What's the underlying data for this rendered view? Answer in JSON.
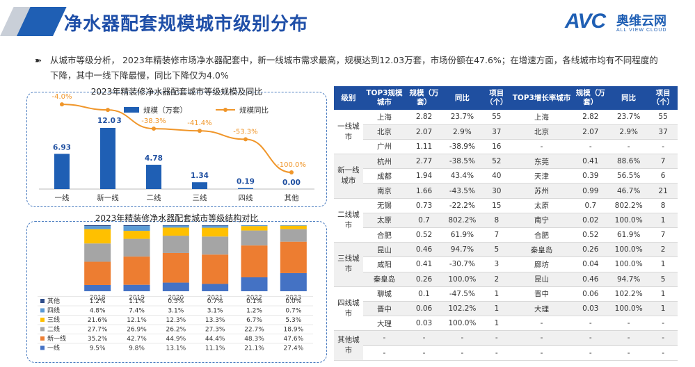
{
  "header": {
    "title": "净水器配套规模城市级别分布",
    "logo_avc": "AVC",
    "logo_cn": "奥维云网",
    "logo_en": "ALL VIEW CLOUD"
  },
  "summary": {
    "bullet": "➽",
    "text": "从城市等级分析， 2023年精装修市场净水器配套中，新一线城市需求最高，规模达到12.03万套，市场份额在47.6%；在增速方面，各线城市均有不同程度的下降，其中一线下降最慢，同比下降仅为4.0%"
  },
  "chart_data": [
    {
      "type": "bar",
      "title": "2023年精装修净水器配套城市等级规模及同比",
      "categories": [
        "一线",
        "新一线",
        "二线",
        "三线",
        "四线",
        "其他"
      ],
      "series": [
        {
          "name": "规模（万套）",
          "type": "bar",
          "values": [
            6.93,
            12.03,
            4.78,
            1.34,
            0.19,
            0.0
          ],
          "labels": [
            "6.93",
            "12.03",
            "4.78",
            "1.34",
            "0.19",
            "0.00"
          ],
          "color": "#1f5fb4"
        },
        {
          "name": "规模同比",
          "type": "line",
          "values": [
            -4.0,
            -11.9,
            -38.3,
            -41.4,
            -53.3,
            -100.0
          ],
          "labels": [
            "-4.0%",
            "",
            "-38.3%",
            "-41.4%",
            "-53.3%",
            "-100.0%"
          ],
          "color": "#f0962a"
        }
      ],
      "top_labels": {
        "one": "-4.0%",
        "newone_a": "12.0",
        "newone_b": "3"
      }
    },
    {
      "type": "bar",
      "stacked": true,
      "title": "2023年精装修净水器配套城市等级结构对比",
      "categories": [
        "2018",
        "2019",
        "2020",
        "2021",
        "2022",
        "2023"
      ],
      "series": [
        {
          "name": "其他",
          "values": [
            1.2,
            1.1,
            0.5,
            0.7,
            0.1,
            0.0
          ],
          "labels": [
            "1.2%",
            "1.1%",
            "0.5%",
            "0.7%",
            "0.1%",
            "0.0%"
          ],
          "color": "#2e4d8a"
        },
        {
          "name": "四线",
          "values": [
            4.8,
            7.4,
            3.1,
            3.1,
            1.2,
            0.7
          ],
          "labels": [
            "4.8%",
            "7.4%",
            "3.1%",
            "3.1%",
            "1.2%",
            "0.7%"
          ],
          "color": "#5b9bd5"
        },
        {
          "name": "三线",
          "values": [
            21.6,
            12.1,
            12.3,
            13.3,
            6.7,
            5.3
          ],
          "labels": [
            "21.6%",
            "12.1%",
            "12.3%",
            "13.3%",
            "6.7%",
            "5.3%"
          ],
          "color": "#ffc000"
        },
        {
          "name": "二线",
          "values": [
            27.7,
            26.9,
            26.2,
            27.3,
            22.7,
            18.9
          ],
          "labels": [
            "27.7%",
            "26.9%",
            "26.2%",
            "27.3%",
            "22.7%",
            "18.9%"
          ],
          "color": "#a5a5a5"
        },
        {
          "name": "新一线",
          "values": [
            35.2,
            42.7,
            44.9,
            44.4,
            48.3,
            47.6
          ],
          "labels": [
            "35.2%",
            "42.7%",
            "44.9%",
            "44.4%",
            "48.3%",
            "47.6%"
          ],
          "color": "#ed7d31"
        },
        {
          "name": "一线",
          "values": [
            9.5,
            9.8,
            13.1,
            11.1,
            21.1,
            27.4
          ],
          "labels": [
            "9.5%",
            "9.8%",
            "13.1%",
            "11.1%",
            "21.1%",
            "27.4%"
          ],
          "color": "#4472c4"
        }
      ]
    }
  ],
  "table": {
    "headers": [
      "级别",
      "TOP3规模城市",
      "规模（万套）",
      "同比",
      "项目（个）",
      "TOP3增长率城市",
      "规模（万套）",
      "同比",
      "项目（个）"
    ],
    "groups": [
      {
        "level": "一线城市",
        "rows": [
          [
            "上海",
            "2.82",
            "23.7%",
            "55",
            "上海",
            "2.82",
            "23.7%",
            "55"
          ],
          [
            "北京",
            "2.07",
            "2.9%",
            "37",
            "北京",
            "2.07",
            "2.9%",
            "37"
          ],
          [
            "广州",
            "1.11",
            "-38.9%",
            "16",
            "-",
            "-",
            "-",
            "-"
          ]
        ]
      },
      {
        "level": "新一线城市",
        "rows": [
          [
            "杭州",
            "2.77",
            "-38.5%",
            "52",
            "东莞",
            "0.41",
            "88.6%",
            "7"
          ],
          [
            "成都",
            "1.94",
            "43.4%",
            "40",
            "天津",
            "0.39",
            "56.5%",
            "6"
          ],
          [
            "南京",
            "1.66",
            "-43.5%",
            "30",
            "苏州",
            "0.99",
            "46.7%",
            "21"
          ]
        ]
      },
      {
        "level": "二线城市",
        "rows": [
          [
            "无锡",
            "0.73",
            "-22.2%",
            "15",
            "太原",
            "0.7",
            "802.2%",
            "8"
          ],
          [
            "太原",
            "0.7",
            "802.2%",
            "8",
            "南宁",
            "0.02",
            "100.0%",
            "1"
          ],
          [
            "合肥",
            "0.52",
            "61.9%",
            "7",
            "合肥",
            "0.52",
            "61.9%",
            "7"
          ]
        ]
      },
      {
        "level": "三线城市",
        "rows": [
          [
            "昆山",
            "0.46",
            "94.7%",
            "5",
            "秦皇岛",
            "0.26",
            "100.0%",
            "2"
          ],
          [
            "咸阳",
            "0.41",
            "-30.7%",
            "3",
            "廊坊",
            "0.04",
            "100.0%",
            "1"
          ],
          [
            "秦皇岛",
            "0.26",
            "100.0%",
            "2",
            "昆山",
            "0.46",
            "94.7%",
            "5"
          ]
        ]
      },
      {
        "level": "四线城市",
        "rows": [
          [
            "聊城",
            "0.1",
            "-47.5%",
            "1",
            "晋中",
            "0.06",
            "102.2%",
            "1"
          ],
          [
            "晋中",
            "0.06",
            "102.2%",
            "1",
            "大理",
            "0.03",
            "100.0%",
            "1"
          ],
          [
            "大理",
            "0.03",
            "100.0%",
            "1",
            "-",
            "-",
            "-",
            "-"
          ]
        ]
      },
      {
        "level": "其他城市",
        "rows": [
          [
            "-",
            "-",
            "-",
            "-",
            "-",
            "-",
            "-",
            "-"
          ],
          [
            "-",
            "-",
            "-",
            "-",
            "-",
            "-",
            "-",
            "-"
          ]
        ]
      }
    ]
  },
  "watermark": "AVC 奥维云网 ALL VIEW CLOUD"
}
